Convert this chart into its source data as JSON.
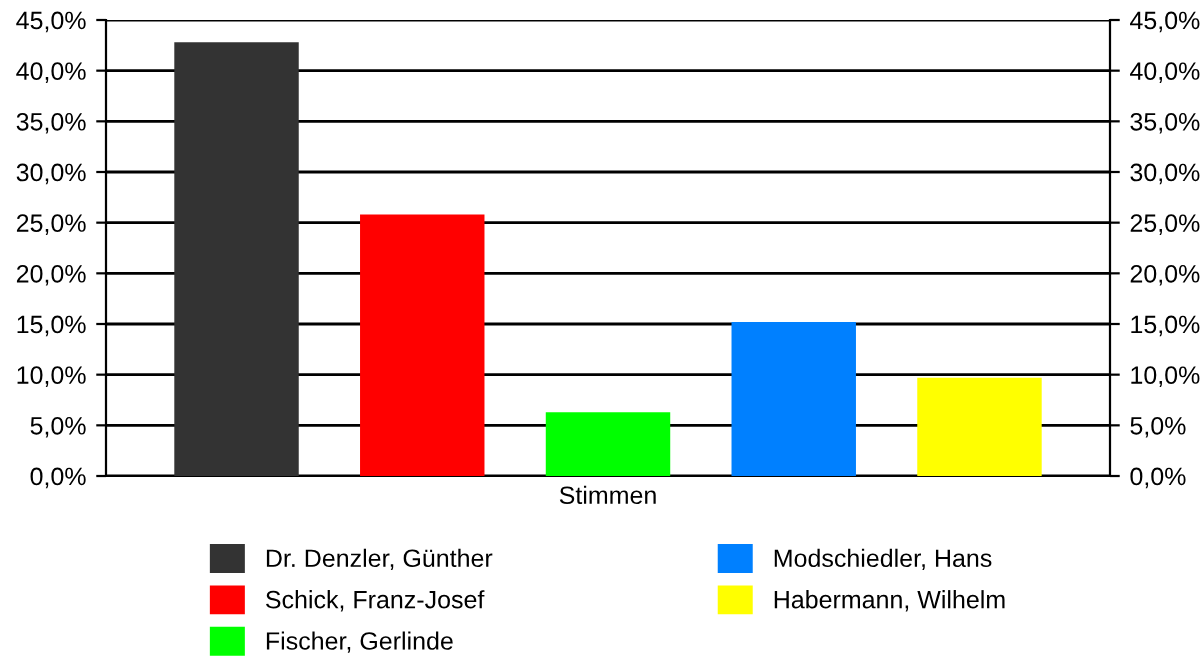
{
  "chart_data": {
    "type": "bar",
    "categories": [
      "Stimmen"
    ],
    "series": [
      {
        "name": "Dr. Denzler, Günther",
        "color": "#333333",
        "values": [
          42.8
        ]
      },
      {
        "name": "Schick, Franz-Josef",
        "color": "#ff0000",
        "values": [
          25.8
        ]
      },
      {
        "name": "Fischer, Gerlinde",
        "color": "#00ff00",
        "values": [
          6.3
        ]
      },
      {
        "name": "Modschiedler, Hans",
        "color": "#0080ff",
        "values": [
          15.2
        ]
      },
      {
        "name": "Habermann, Wilhelm",
        "color": "#ffff00",
        "values": [
          9.7
        ]
      }
    ],
    "ylim": [
      0,
      45
    ],
    "yticks": [
      {
        "value": 0,
        "label": "0,0%"
      },
      {
        "value": 5,
        "label": "5,0%"
      },
      {
        "value": 10,
        "label": "10,0%"
      },
      {
        "value": 15,
        "label": "15,0%"
      },
      {
        "value": 20,
        "label": "20,0%"
      },
      {
        "value": 25,
        "label": "25,0%"
      },
      {
        "value": 30,
        "label": "30,0%"
      },
      {
        "value": 35,
        "label": "35,0%"
      },
      {
        "value": 40,
        "label": "40,0%"
      },
      {
        "value": 45,
        "label": "45,0%"
      }
    ],
    "grid": "y",
    "legend": "bottom"
  }
}
